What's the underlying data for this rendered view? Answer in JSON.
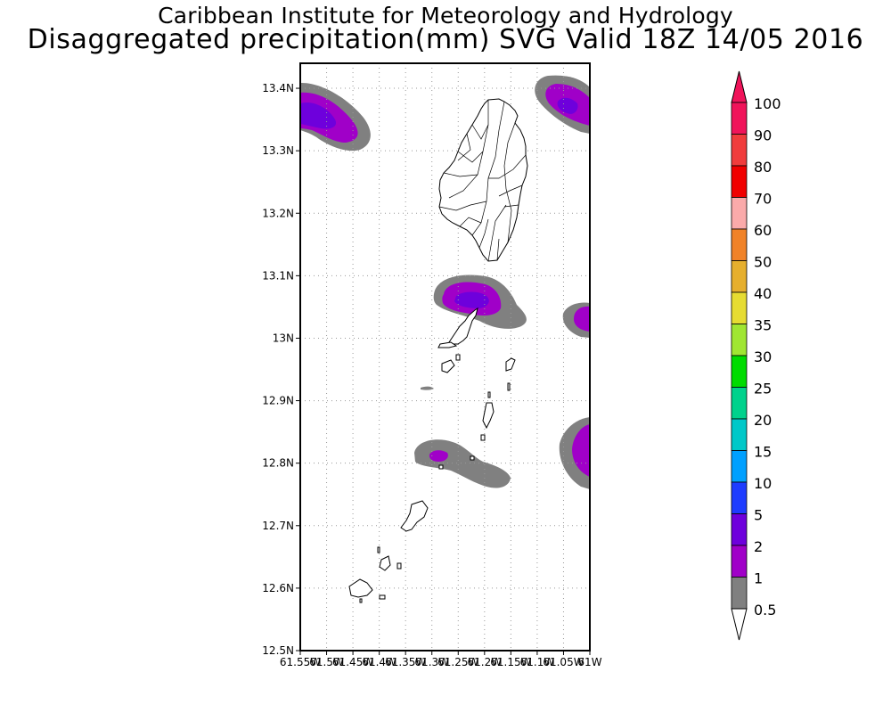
{
  "header": {
    "line1": "Caribbean Institute for Meteorology and Hydrology",
    "line2": "Disaggregated precipitation(mm) SVG Valid 18Z 14/05 2016"
  },
  "map": {
    "lat_labels": [
      "13.4N",
      "13.3N",
      "13.2N",
      "13.1N",
      "13N",
      "12.9N",
      "12.8N",
      "12.7N",
      "12.6N",
      "12.5N"
    ],
    "lat_values": [
      13.4,
      13.3,
      13.2,
      13.1,
      13.0,
      12.9,
      12.8,
      12.7,
      12.6,
      12.5
    ],
    "lon_labels": [
      "61.55W",
      "61.5W",
      "61.45W",
      "61.4W",
      "61.35W",
      "61.3W",
      "61.25W",
      "61.2W",
      "61.15W",
      "61.1W",
      "61.05W",
      "61W"
    ],
    "lon_values": [
      -61.55,
      -61.5,
      -61.45,
      -61.4,
      -61.35,
      -61.3,
      -61.25,
      -61.2,
      -61.15,
      -61.1,
      -61.05,
      -61.0
    ],
    "lat_range": [
      12.5,
      13.44
    ],
    "lon_range": [
      -61.55,
      -61.0
    ],
    "grid": true
  },
  "legend": {
    "bins": [
      {
        "label": "100",
        "color": "#f0145a"
      },
      {
        "label": "90",
        "color": "#f03c3c"
      },
      {
        "label": "80",
        "color": "#f00000"
      },
      {
        "label": "70",
        "color": "#faaaaa"
      },
      {
        "label": "60",
        "color": "#f08228"
      },
      {
        "label": "50",
        "color": "#e6af2d"
      },
      {
        "label": "40",
        "color": "#e6dc32"
      },
      {
        "label": "35",
        "color": "#a0e632"
      },
      {
        "label": "30",
        "color": "#00dc00"
      },
      {
        "label": "25",
        "color": "#00d28c"
      },
      {
        "label": "20",
        "color": "#00c8c8"
      },
      {
        "label": "15",
        "color": "#00a0ff"
      },
      {
        "label": "10",
        "color": "#1e3cff"
      },
      {
        "label": "5",
        "color": "#6e00dc"
      },
      {
        "label": "2",
        "color": "#a000c8"
      },
      {
        "label": "1",
        "color": "#808080"
      }
    ],
    "bottom_label": "0.5",
    "over_color": "#f0145a",
    "under_color": "#ffffff"
  }
}
